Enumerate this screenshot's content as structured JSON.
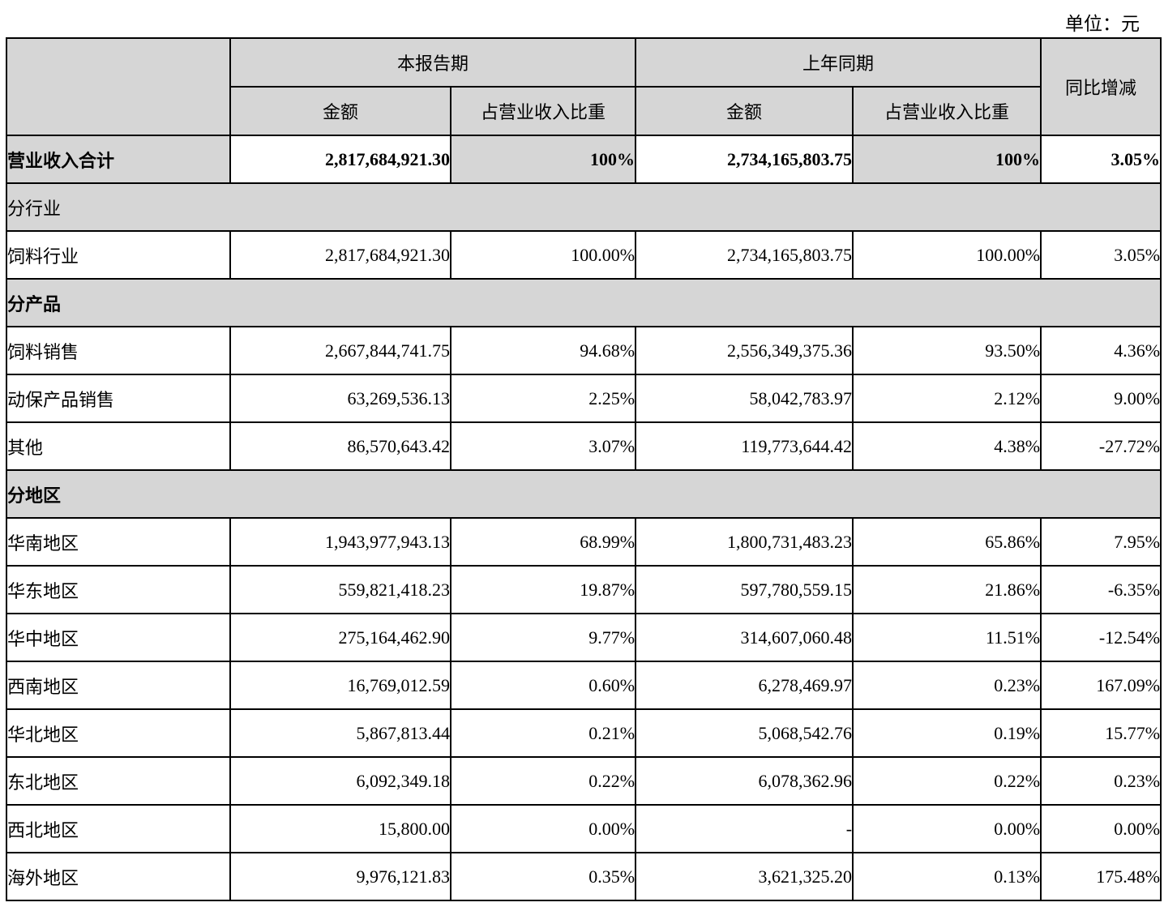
{
  "unit_label": "单位：元",
  "colors": {
    "header_bg": "#d6d6d6",
    "border": "#000000",
    "page_bg": "#ffffff"
  },
  "table": {
    "header": {
      "corner": "",
      "current_period": "本报告期",
      "prior_period": "上年同期",
      "yoy_change": "同比增减",
      "amount": "金额",
      "pct_of_revenue": "占营业收入比重"
    },
    "rows": [
      {
        "type": "total",
        "label": "营业收入合计",
        "amount_current": "2,817,684,921.30",
        "pct_current": "100%",
        "amount_prior": "2,734,165,803.75",
        "pct_prior": "100%",
        "yoy": "3.05%"
      },
      {
        "type": "section",
        "label": "分行业",
        "bold": false
      },
      {
        "type": "data",
        "label": "饲料行业",
        "amount_current": "2,817,684,921.30",
        "pct_current": "100.00%",
        "amount_prior": "2,734,165,803.75",
        "pct_prior": "100.00%",
        "yoy": "3.05%"
      },
      {
        "type": "section",
        "label": "分产品",
        "bold": true
      },
      {
        "type": "data",
        "label": "饲料销售",
        "amount_current": "2,667,844,741.75",
        "pct_current": "94.68%",
        "amount_prior": "2,556,349,375.36",
        "pct_prior": "93.50%",
        "yoy": "4.36%"
      },
      {
        "type": "data",
        "label": "动保产品销售",
        "amount_current": "63,269,536.13",
        "pct_current": "2.25%",
        "amount_prior": "58,042,783.97",
        "pct_prior": "2.12%",
        "yoy": "9.00%"
      },
      {
        "type": "data",
        "label": "其他",
        "amount_current": "86,570,643.42",
        "pct_current": "3.07%",
        "amount_prior": "119,773,644.42",
        "pct_prior": "4.38%",
        "yoy": "-27.72%"
      },
      {
        "type": "section",
        "label": "分地区",
        "bold": true
      },
      {
        "type": "data",
        "label": "华南地区",
        "amount_current": "1,943,977,943.13",
        "pct_current": "68.99%",
        "amount_prior": "1,800,731,483.23",
        "pct_prior": "65.86%",
        "yoy": "7.95%"
      },
      {
        "type": "data",
        "label": "华东地区",
        "amount_current": "559,821,418.23",
        "pct_current": "19.87%",
        "amount_prior": "597,780,559.15",
        "pct_prior": "21.86%",
        "yoy": "-6.35%"
      },
      {
        "type": "data",
        "label": "华中地区",
        "amount_current": "275,164,462.90",
        "pct_current": "9.77%",
        "amount_prior": "314,607,060.48",
        "pct_prior": "11.51%",
        "yoy": "-12.54%"
      },
      {
        "type": "data",
        "label": "西南地区",
        "amount_current": "16,769,012.59",
        "pct_current": "0.60%",
        "amount_prior": "6,278,469.97",
        "pct_prior": "0.23%",
        "yoy": "167.09%"
      },
      {
        "type": "data",
        "label": "华北地区",
        "amount_current": "5,867,813.44",
        "pct_current": "0.21%",
        "amount_prior": "5,068,542.76",
        "pct_prior": "0.19%",
        "yoy": "15.77%"
      },
      {
        "type": "data",
        "label": "东北地区",
        "amount_current": "6,092,349.18",
        "pct_current": "0.22%",
        "amount_prior": "6,078,362.96",
        "pct_prior": "0.22%",
        "yoy": "0.23%"
      },
      {
        "type": "data",
        "label": "西北地区",
        "amount_current": "15,800.00",
        "pct_current": "0.00%",
        "amount_prior": "-",
        "pct_prior": "0.00%",
        "yoy": "0.00%"
      },
      {
        "type": "data",
        "label": "海外地区",
        "amount_current": "9,976,121.83",
        "pct_current": "0.35%",
        "amount_prior": "3,621,325.20",
        "pct_prior": "0.13%",
        "yoy": "175.48%"
      }
    ]
  }
}
